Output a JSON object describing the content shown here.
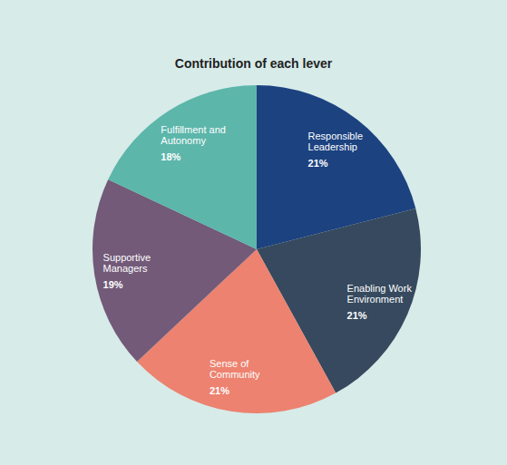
{
  "chart_data": {
    "type": "pie",
    "title": "Contribution of each lever",
    "categories": [
      "Responsible Leadership",
      "Enabling Work Environment",
      "Sense of Community",
      "Supportive Managers",
      "Fulfillment and Autonomy"
    ],
    "values": [
      21,
      21,
      21,
      19,
      18
    ],
    "value_labels": [
      "21%",
      "21%",
      "21%",
      "19%",
      "18%"
    ],
    "colors": [
      "#1c4280",
      "#36495e",
      "#ec826f",
      "#725a78",
      "#5cb6aa"
    ],
    "data_labels": true
  }
}
